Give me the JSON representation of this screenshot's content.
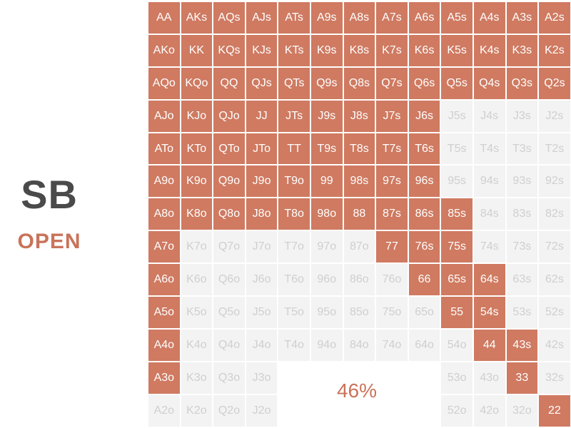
{
  "position": "SB",
  "action": "OPEN",
  "range_percent": "46%",
  "colors": {
    "in_range": "#cf7a61",
    "out_of_range": "#f3f3f3",
    "label_gray": "#4a4a4a",
    "accent": "#c9735a"
  },
  "grid": [
    [
      "AA",
      "AKs",
      "AQs",
      "AJs",
      "ATs",
      "A9s",
      "A8s",
      "A7s",
      "A6s",
      "A5s",
      "A4s",
      "A3s",
      "A2s"
    ],
    [
      "AKo",
      "KK",
      "KQs",
      "KJs",
      "KTs",
      "K9s",
      "K8s",
      "K7s",
      "K6s",
      "K5s",
      "K4s",
      "K3s",
      "K2s"
    ],
    [
      "AQo",
      "KQo",
      "QQ",
      "QJs",
      "QTs",
      "Q9s",
      "Q8s",
      "Q7s",
      "Q6s",
      "Q5s",
      "Q4s",
      "Q3s",
      "Q2s"
    ],
    [
      "AJo",
      "KJo",
      "QJo",
      "JJ",
      "JTs",
      "J9s",
      "J8s",
      "J7s",
      "J6s",
      "J5s",
      "J4s",
      "J3s",
      "J2s"
    ],
    [
      "ATo",
      "KTo",
      "QTo",
      "JTo",
      "TT",
      "T9s",
      "T8s",
      "T7s",
      "T6s",
      "T5s",
      "T4s",
      "T3s",
      "T2s"
    ],
    [
      "A9o",
      "K9o",
      "Q9o",
      "J9o",
      "T9o",
      "99",
      "98s",
      "97s",
      "96s",
      "95s",
      "94s",
      "93s",
      "92s"
    ],
    [
      "A8o",
      "K8o",
      "Q8o",
      "J8o",
      "T8o",
      "98o",
      "88",
      "87s",
      "86s",
      "85s",
      "84s",
      "83s",
      "82s"
    ],
    [
      "A7o",
      "K7o",
      "Q7o",
      "J7o",
      "T7o",
      "97o",
      "87o",
      "77",
      "76s",
      "75s",
      "74s",
      "73s",
      "72s"
    ],
    [
      "A6o",
      "K6o",
      "Q6o",
      "J6o",
      "T6o",
      "96o",
      "86o",
      "76o",
      "66",
      "65s",
      "64s",
      "63s",
      "62s"
    ],
    [
      "A5o",
      "K5o",
      "Q5o",
      "J5o",
      "T5o",
      "95o",
      "85o",
      "75o",
      "65o",
      "55",
      "54s",
      "53s",
      "52s"
    ],
    [
      "A4o",
      "K4o",
      "Q4o",
      "J4o",
      "T4o",
      "94o",
      "84o",
      "74o",
      "64o",
      "54o",
      "44",
      "43s",
      "42s"
    ],
    [
      "A3o",
      "K3o",
      "Q3o",
      "J3o",
      "",
      "",
      "",
      "",
      "",
      "53o",
      "43o",
      "33",
      "32s"
    ],
    [
      "A2o",
      "K2o",
      "Q2o",
      "J2o",
      "",
      "",
      "",
      "",
      "",
      "52o",
      "42o",
      "32o",
      "22"
    ]
  ],
  "in_range": [
    [
      1,
      1,
      1,
      1,
      1,
      1,
      1,
      1,
      1,
      1,
      1,
      1,
      1
    ],
    [
      1,
      1,
      1,
      1,
      1,
      1,
      1,
      1,
      1,
      1,
      1,
      1,
      1
    ],
    [
      1,
      1,
      1,
      1,
      1,
      1,
      1,
      1,
      1,
      1,
      1,
      1,
      1
    ],
    [
      1,
      1,
      1,
      1,
      1,
      1,
      1,
      1,
      1,
      0,
      0,
      0,
      0
    ],
    [
      1,
      1,
      1,
      1,
      1,
      1,
      1,
      1,
      1,
      0,
      0,
      0,
      0
    ],
    [
      1,
      1,
      1,
      1,
      1,
      1,
      1,
      1,
      1,
      0,
      0,
      0,
      0
    ],
    [
      1,
      1,
      1,
      1,
      1,
      1,
      1,
      1,
      1,
      1,
      0,
      0,
      0
    ],
    [
      1,
      0,
      0,
      0,
      0,
      0,
      0,
      1,
      1,
      1,
      0,
      0,
      0
    ],
    [
      1,
      0,
      0,
      0,
      0,
      0,
      0,
      0,
      1,
      1,
      1,
      0,
      0
    ],
    [
      1,
      0,
      0,
      0,
      0,
      0,
      0,
      0,
      0,
      1,
      1,
      0,
      0
    ],
    [
      1,
      0,
      0,
      0,
      0,
      0,
      0,
      0,
      0,
      0,
      1,
      1,
      0
    ],
    [
      1,
      0,
      0,
      0,
      0,
      0,
      0,
      0,
      0,
      0,
      0,
      1,
      0
    ],
    [
      0,
      0,
      0,
      0,
      0,
      0,
      0,
      0,
      0,
      0,
      0,
      0,
      1
    ]
  ]
}
